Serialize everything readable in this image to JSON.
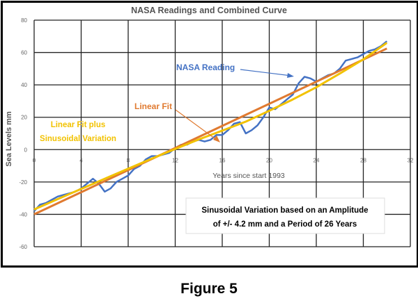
{
  "chart_data": {
    "type": "line",
    "title": "NASA Readings and Combined Curve",
    "xlabel": "Years since start 1993",
    "ylabel": "Sea Levels mm",
    "xlim": [
      0,
      32
    ],
    "ylim": [
      -60,
      80
    ],
    "x_ticks": [
      "0",
      "4",
      "8",
      "12",
      "16",
      "20",
      "24",
      "28",
      "32"
    ],
    "y_ticks": [
      "-60",
      "-40",
      "-20",
      "0",
      "20",
      "40",
      "60",
      "80"
    ],
    "grid": true,
    "colors": {
      "nasa": "#4472C4",
      "linear": "#E07A30",
      "sinusoidal": "#F2C200"
    },
    "series": [
      {
        "name": "NASA Reading",
        "x": [
          0,
          0.5,
          1,
          1.5,
          2,
          2.5,
          3,
          3.5,
          4,
          4.5,
          5,
          5.5,
          6,
          6.5,
          7,
          7.5,
          8,
          8.5,
          9,
          9.5,
          10,
          10.5,
          11,
          11.5,
          12,
          12.5,
          13,
          13.5,
          14,
          14.5,
          15,
          15.5,
          16,
          16.5,
          17,
          17.5,
          18,
          18.5,
          19,
          19.5,
          20,
          20.5,
          21,
          21.5,
          22,
          22.5,
          23,
          23.5,
          24,
          24.5,
          25,
          25.5,
          26,
          26.5,
          27,
          27.5,
          28,
          28.5,
          29,
          29.5,
          30
        ],
        "y": [
          -38,
          -34,
          -33,
          -31,
          -29,
          -28,
          -27,
          -26,
          -24,
          -21,
          -18,
          -21,
          -26,
          -24,
          -20,
          -18,
          -16,
          -12,
          -10,
          -6,
          -4,
          -4,
          -3,
          -2,
          1,
          3,
          3,
          5,
          6,
          5,
          6,
          9,
          9,
          12,
          16,
          17,
          10,
          12,
          15,
          20,
          26,
          25,
          28,
          31,
          34,
          41,
          45,
          44,
          42,
          44,
          46,
          47,
          50,
          55,
          56,
          57,
          59,
          61,
          62,
          64,
          67
        ]
      },
      {
        "name": "Linear Fit",
        "x": [
          0,
          30
        ],
        "y": [
          -40,
          62.5
        ]
      },
      {
        "name": "Linear Fit plus Sinusoidal Variation",
        "x": [
          0,
          2,
          4,
          6,
          8,
          10,
          12,
          14,
          16,
          18,
          20,
          22,
          24,
          26,
          28,
          30
        ],
        "y": [
          -37,
          -30.6,
          -24.3,
          -18,
          -11.8,
          -5.6,
          0.4,
          6.3,
          11.7,
          17.3,
          24,
          31,
          38.5,
          47,
          55.8,
          66
        ]
      }
    ],
    "annotations": {
      "nasa_label": "NASA Reading",
      "linear_label": "Linear Fit",
      "sin_label_1": "Linear Fit plus",
      "sin_label_2": "Sinusoidal Variation",
      "box_line_1": "Sinusoidal Variation based on an Amplitude",
      "box_line_2": "of +/- 4.2 mm and a Period of 26 Years"
    }
  },
  "caption": "Figure 5"
}
